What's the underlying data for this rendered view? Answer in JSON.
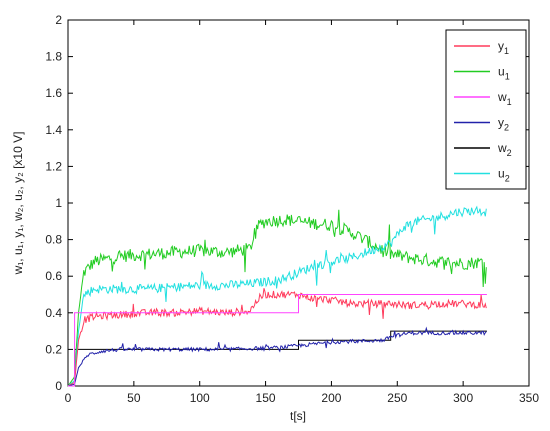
{
  "chart_data": {
    "type": "line",
    "title": "",
    "xlabel": "t[s]",
    "ylabel": "w₁, u₁, y₁, w₂, u₂, y₂ [x10 V]",
    "xlim": [
      0,
      350
    ],
    "ylim": [
      0,
      2
    ],
    "xticks": [
      "0",
      "50",
      "100",
      "150",
      "200",
      "250",
      "300",
      "350"
    ],
    "yticks": [
      "0",
      "0.2",
      "0.4",
      "0.6",
      "0.8",
      "1",
      "1.2",
      "1.4",
      "1.6",
      "1.8",
      "2"
    ],
    "grid": false,
    "legend_position": "top-right",
    "series": [
      {
        "name": "y1",
        "label_base": "y",
        "label_sub": "1",
        "color": "#ff3b5c",
        "noise": 0.02,
        "x": [
          0,
          5,
          8,
          12,
          20,
          40,
          60,
          80,
          100,
          120,
          138,
          145,
          150,
          165,
          175,
          185,
          200,
          215,
          230,
          245,
          260,
          280,
          300,
          318
        ],
        "y": [
          0,
          0.02,
          0.25,
          0.36,
          0.38,
          0.39,
          0.4,
          0.4,
          0.41,
          0.4,
          0.41,
          0.48,
          0.5,
          0.5,
          0.5,
          0.48,
          0.47,
          0.45,
          0.45,
          0.45,
          0.44,
          0.45,
          0.45,
          0.44
        ]
      },
      {
        "name": "u1",
        "label_base": "u",
        "label_sub": "1",
        "color": "#22cc22",
        "noise": 0.035,
        "x": [
          0,
          5,
          8,
          12,
          20,
          40,
          60,
          80,
          100,
          120,
          138,
          145,
          150,
          165,
          175,
          185,
          200,
          215,
          230,
          245,
          260,
          280,
          300,
          318
        ],
        "y": [
          0,
          0.05,
          0.4,
          0.62,
          0.68,
          0.71,
          0.72,
          0.73,
          0.74,
          0.73,
          0.75,
          0.88,
          0.9,
          0.91,
          0.9,
          0.89,
          0.88,
          0.84,
          0.78,
          0.72,
          0.7,
          0.68,
          0.67,
          0.68
        ]
      },
      {
        "name": "w1",
        "label_base": "w",
        "label_sub": "1",
        "color": "#ff44ff",
        "noise": 0,
        "x": [
          0,
          5,
          5,
          175,
          175,
          318
        ],
        "y": [
          0,
          0,
          0.4,
          0.4,
          0.5,
          0.5
        ]
      },
      {
        "name": "y2",
        "label_base": "y",
        "label_sub": "2",
        "color": "#2222aa",
        "noise": 0.01,
        "x": [
          0,
          5,
          8,
          15,
          25,
          40,
          80,
          120,
          160,
          175,
          200,
          240,
          245,
          260,
          290,
          318
        ],
        "y": [
          0,
          0.01,
          0.1,
          0.17,
          0.19,
          0.2,
          0.2,
          0.2,
          0.21,
          0.22,
          0.24,
          0.25,
          0.27,
          0.29,
          0.29,
          0.29
        ]
      },
      {
        "name": "w2",
        "label_base": "w",
        "label_sub": "2",
        "color": "#000000",
        "noise": 0,
        "x": [
          0,
          5,
          5,
          175,
          175,
          245,
          245,
          318
        ],
        "y": [
          0,
          0,
          0.2,
          0.2,
          0.25,
          0.25,
          0.3,
          0.3
        ]
      },
      {
        "name": "u2",
        "label_base": "u",
        "label_sub": "2",
        "color": "#22e0e0",
        "noise": 0.025,
        "x": [
          0,
          5,
          8,
          12,
          20,
          40,
          60,
          80,
          100,
          120,
          140,
          160,
          175,
          185,
          200,
          215,
          230,
          245,
          255,
          265,
          280,
          295,
          310,
          318
        ],
        "y": [
          0,
          0.03,
          0.3,
          0.5,
          0.53,
          0.53,
          0.53,
          0.54,
          0.55,
          0.55,
          0.56,
          0.58,
          0.62,
          0.65,
          0.68,
          0.7,
          0.74,
          0.78,
          0.87,
          0.9,
          0.92,
          0.95,
          0.96,
          0.95
        ]
      }
    ]
  }
}
